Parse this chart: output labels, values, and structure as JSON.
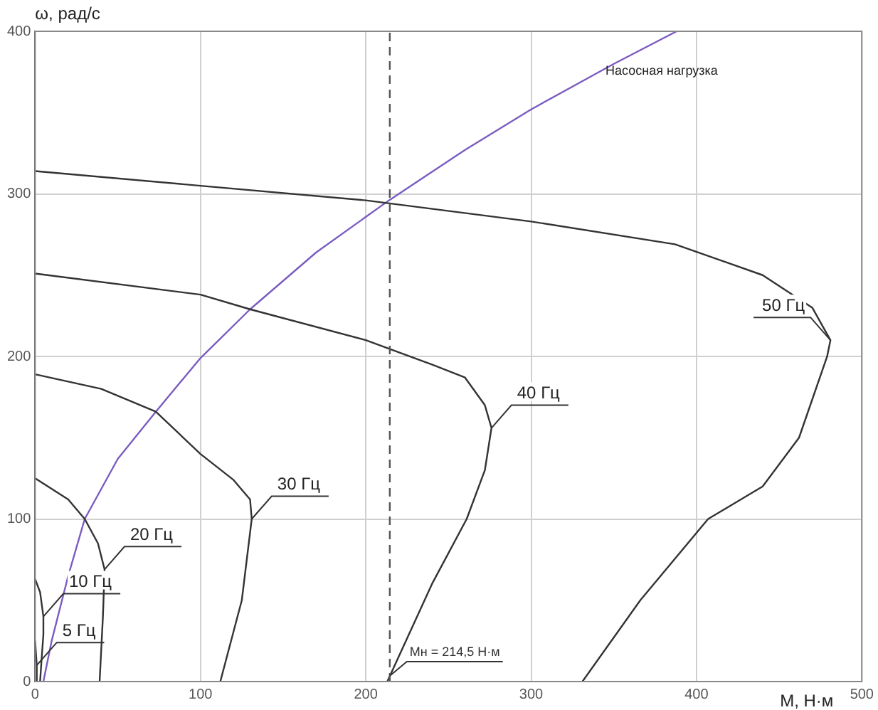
{
  "chart_data": {
    "type": "line",
    "xlabel": "M, Н·м",
    "ylabel": "ω, рад/с",
    "xlim": [
      0,
      500
    ],
    "ylim": [
      0,
      400
    ],
    "xticks": [
      0,
      100,
      200,
      300,
      400,
      500
    ],
    "yticks": [
      0,
      100,
      200,
      300,
      400
    ],
    "grid": true,
    "legend": false,
    "marker": "none",
    "line_style": "solid",
    "series": [
      {
        "name": "50 Гц",
        "color": "#333333",
        "x": [
          0,
          100,
          200,
          300,
          387,
          440,
          470,
          481,
          479,
          462,
          440,
          407,
          366,
          331
        ],
        "values": [
          314,
          305,
          296,
          283,
          269,
          250,
          230,
          210,
          200,
          150,
          120,
          100,
          50,
          0
        ]
      },
      {
        "name": "40 Гц",
        "color": "#333333",
        "x": [
          0,
          100,
          130,
          200,
          240,
          260,
          272,
          276,
          272,
          261,
          240,
          213
        ],
        "values": [
          251,
          238,
          229,
          210,
          195,
          187,
          170,
          156,
          130,
          100,
          60,
          0
        ]
      },
      {
        "name": "30 Гц",
        "color": "#333333",
        "x": [
          0,
          40,
          73,
          100,
          120,
          130,
          131,
          125,
          112
        ],
        "values": [
          189,
          180,
          166,
          140,
          124,
          112,
          100,
          50,
          0
        ]
      },
      {
        "name": "20 Гц",
        "color": "#333333",
        "x": [
          0,
          20,
          30,
          38,
          42,
          41,
          39
        ],
        "values": [
          125,
          112,
          100,
          85,
          69,
          40,
          0
        ]
      },
      {
        "name": "10 Гц",
        "color": "#333333",
        "x": [
          0,
          3,
          5,
          5,
          4,
          3
        ],
        "values": [
          63,
          55,
          40,
          29,
          15,
          0
        ]
      },
      {
        "name": "5 Гц",
        "color": "#333333",
        "x": [
          0,
          1,
          1
        ],
        "values": [
          25,
          10,
          0
        ]
      },
      {
        "name": "Насосная нагрузка",
        "color": "#7a5cc0",
        "x": [
          5,
          10,
          20,
          30,
          50,
          73,
          100,
          130,
          170,
          214,
          260,
          300,
          350,
          388
        ],
        "values": [
          0,
          25,
          65,
          100,
          137,
          166,
          199,
          229,
          264,
          296,
          327,
          352,
          380,
          400
        ]
      }
    ],
    "ref_lines": [
      {
        "axis": "x",
        "value": 214.5,
        "label": "Mн = 214,5 Н·м",
        "line_style": "dashed",
        "color": "#555555"
      }
    ]
  }
}
